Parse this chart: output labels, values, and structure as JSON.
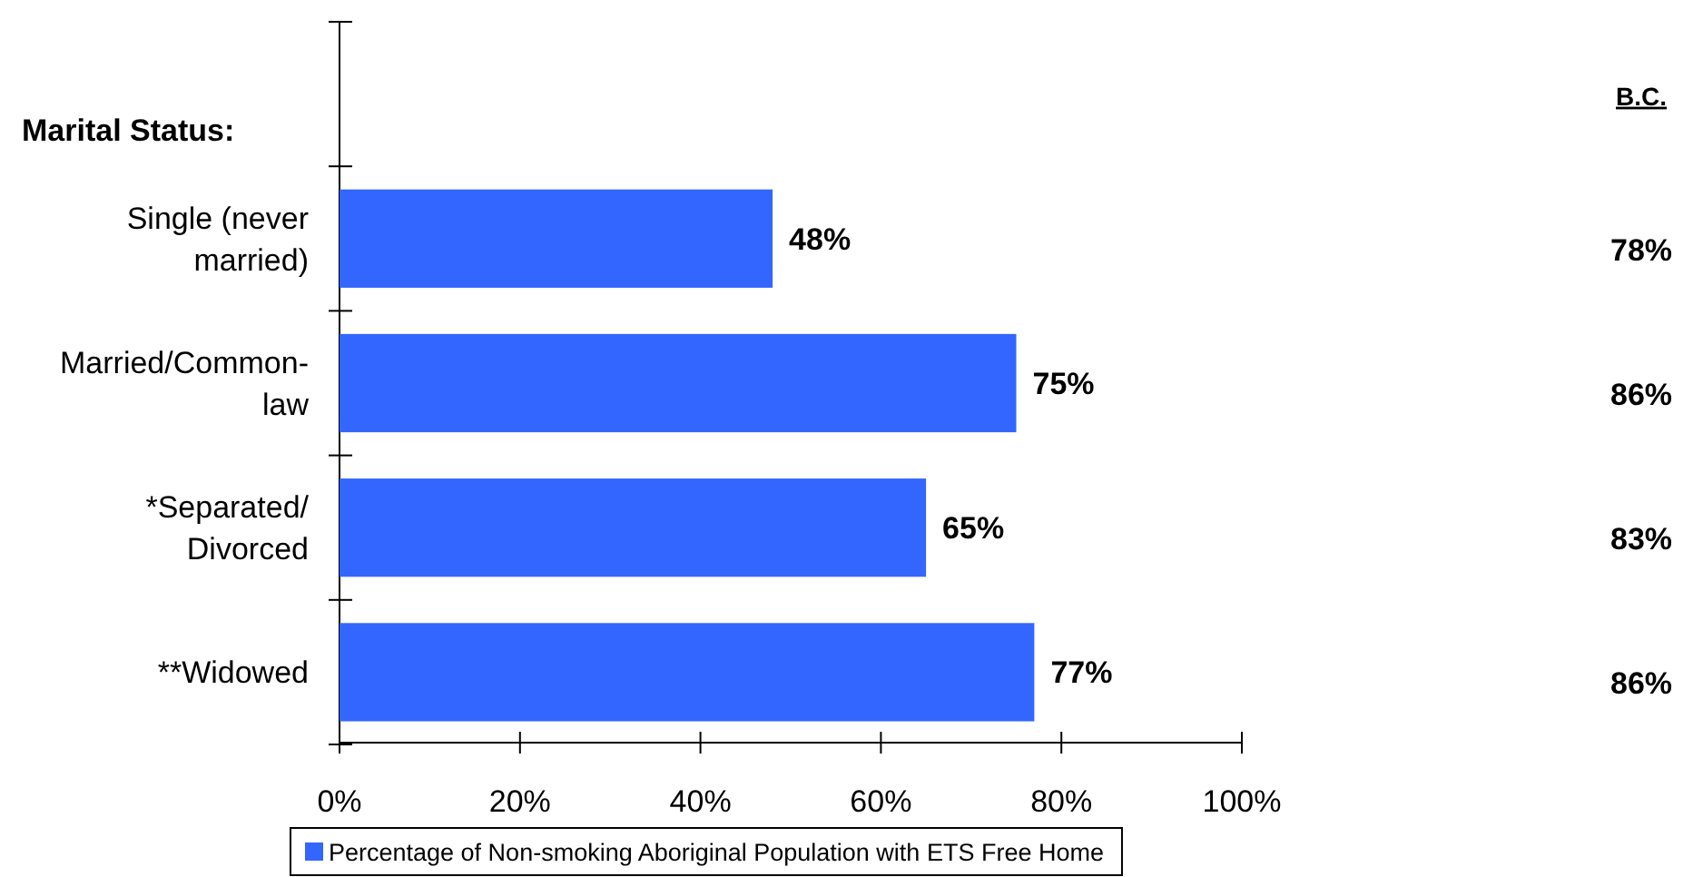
{
  "chart_data": {
    "type": "bar",
    "orientation": "horizontal",
    "ylabel": "Marital Status:",
    "categories": [
      null,
      "Single (never married)",
      "Married/Common-law",
      "*Separated/Divorced",
      "**Widowed"
    ],
    "series": [
      {
        "name": "Percentage of Non-smoking Aboriginal Population with ETS Free Home",
        "color": "#3366ff",
        "values": [
          null,
          48,
          75,
          65,
          77
        ],
        "value_labels": [
          null,
          "48%",
          "75%",
          "65%",
          "77%"
        ]
      }
    ],
    "xlim": [
      0,
      100
    ],
    "xticks": [
      {
        "value": 0,
        "label": "0%"
      },
      {
        "value": 20,
        "label": "20%"
      },
      {
        "value": 40,
        "label": "40%"
      },
      {
        "value": 60,
        "label": "60%"
      },
      {
        "value": 80,
        "label": "80%"
      },
      {
        "value": 100,
        "label": "100%"
      }
    ],
    "legend": "bottom",
    "annotations": [
      "B.C.",
      "78%",
      "86%",
      "83%",
      "86%"
    ]
  }
}
